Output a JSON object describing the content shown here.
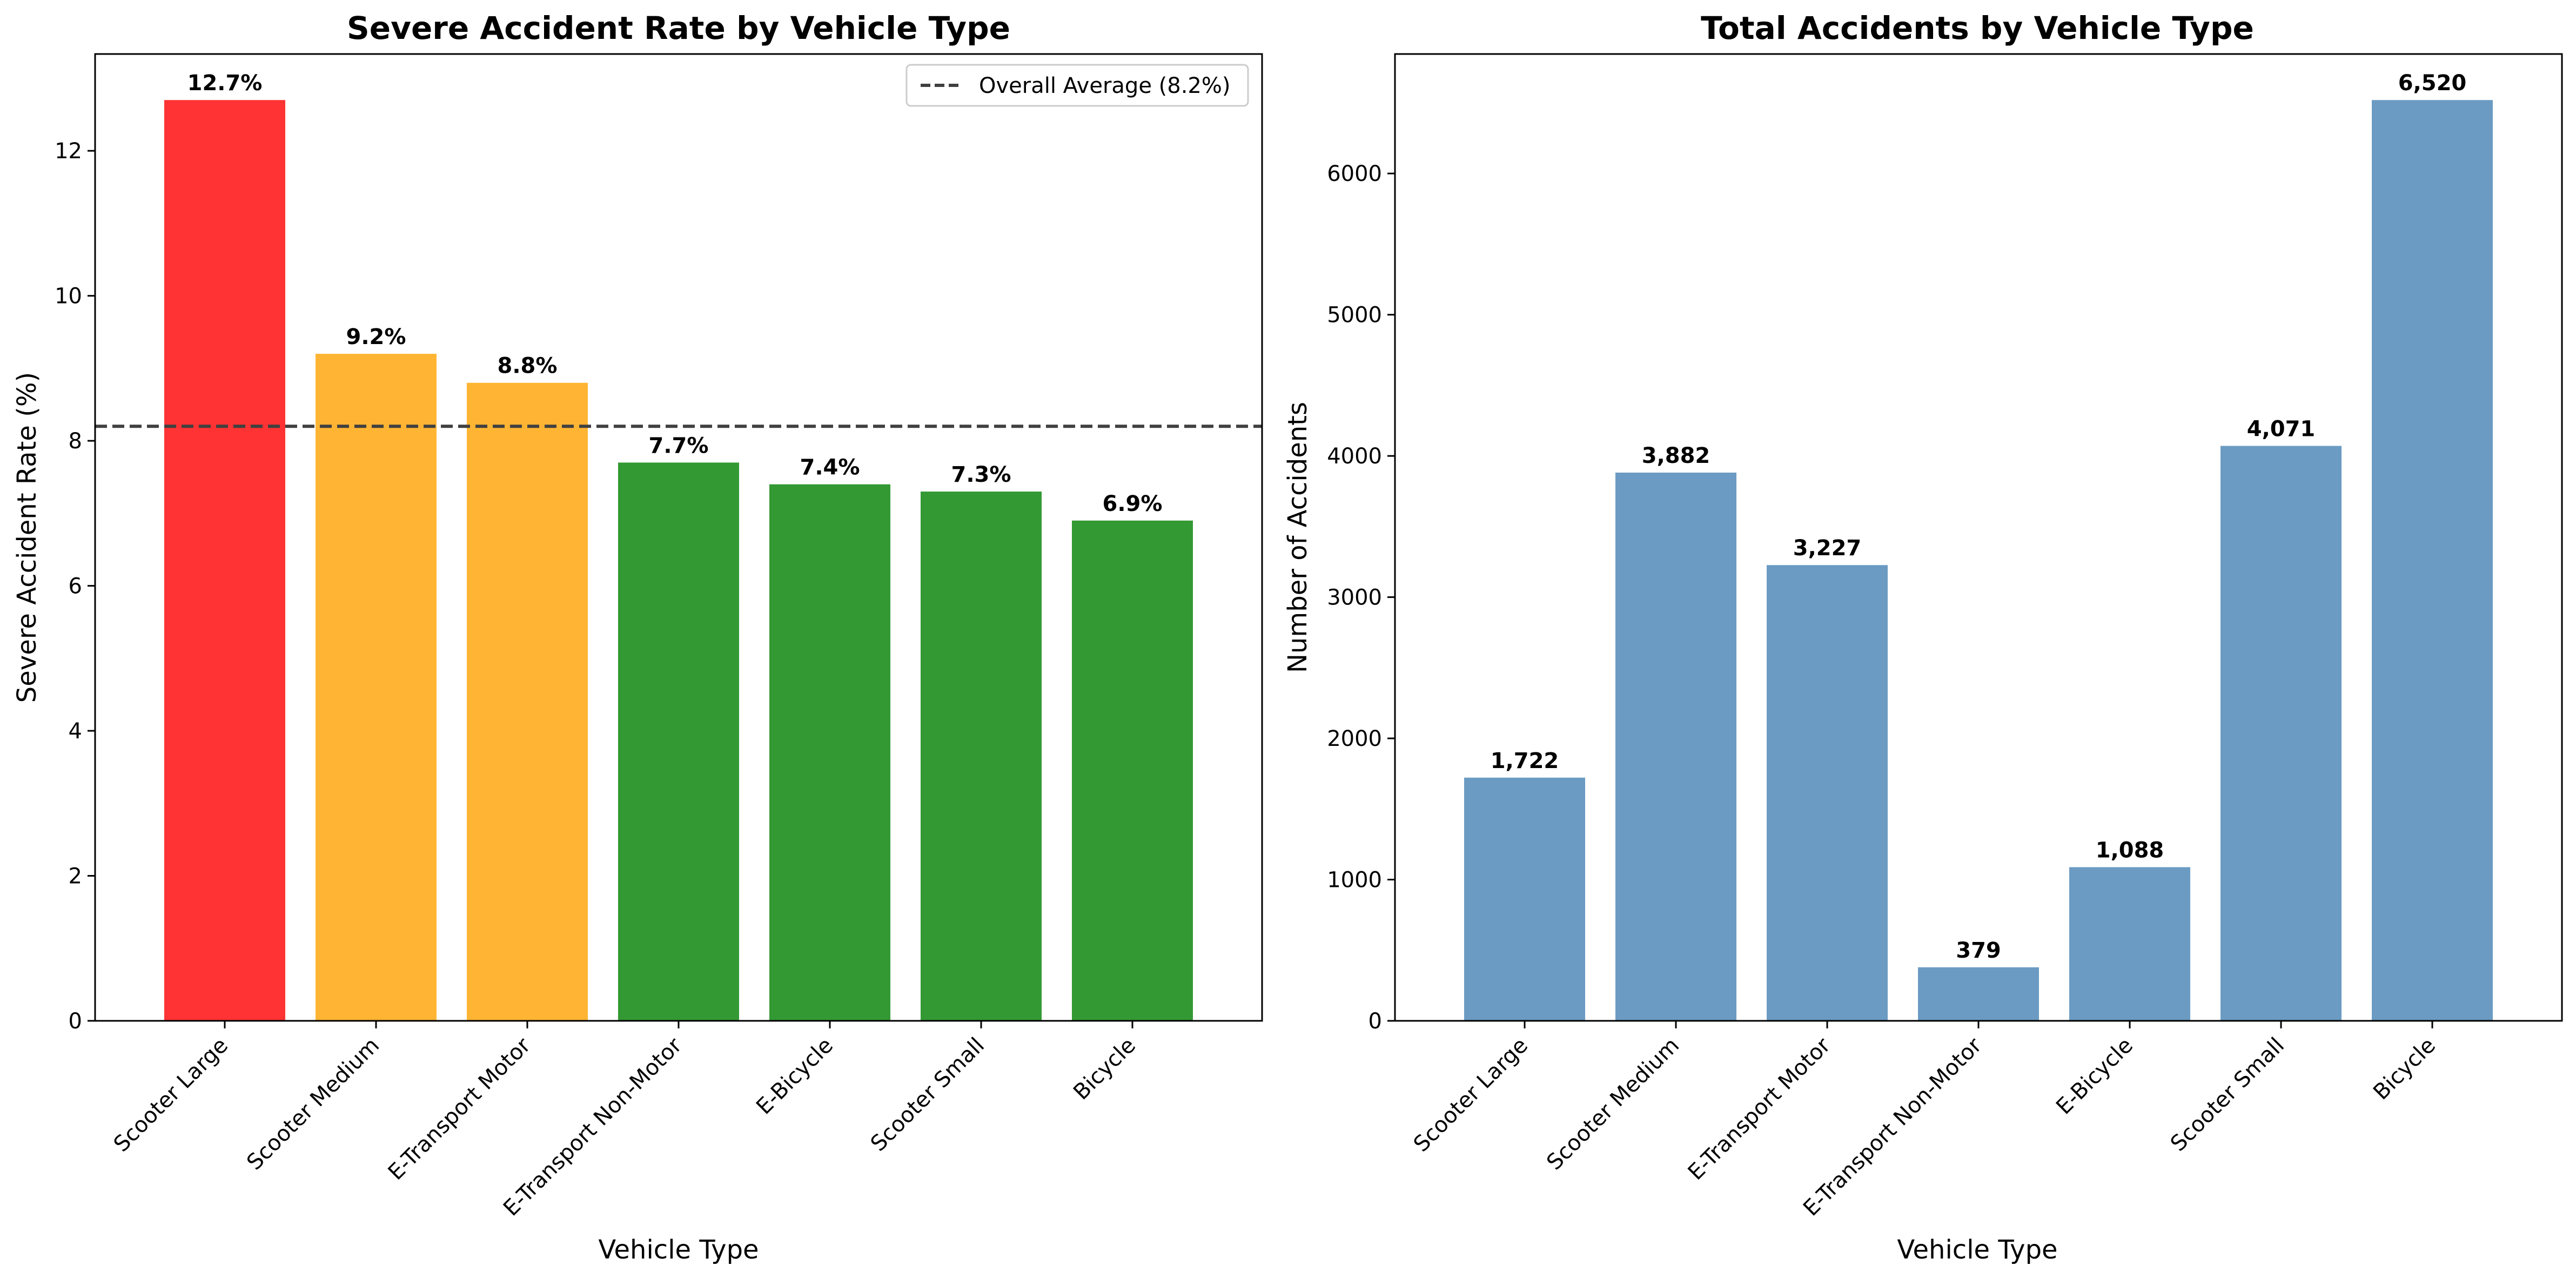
{
  "chart_data": [
    {
      "type": "bar",
      "title": "Severe Accident Rate by Vehicle Type",
      "xlabel": "Vehicle Type",
      "ylabel": "Severe Accident Rate (%)",
      "categories": [
        "Scooter Large",
        "Scooter Medium",
        "E-Transport Motor",
        "E-Transport Non-Motor",
        "E-Bicycle",
        "Scooter Small",
        "Bicycle"
      ],
      "values": [
        12.7,
        9.2,
        8.8,
        7.7,
        7.4,
        7.3,
        6.9
      ],
      "value_labels": [
        "12.7%",
        "9.2%",
        "8.8%",
        "7.7%",
        "7.4%",
        "7.3%",
        "6.9%"
      ],
      "bar_colors": [
        "#ff3333",
        "#ffb533",
        "#ffb533",
        "#339933",
        "#339933",
        "#339933",
        "#339933"
      ],
      "yticks": [
        0,
        2,
        4,
        6,
        8,
        10,
        12
      ],
      "ylim": [
        0,
        13.335
      ],
      "grid": false,
      "reference_line": {
        "value": 8.2,
        "label": "Overall Average (8.2%)",
        "color": "#404040",
        "style": "dashed"
      },
      "legend": {
        "position": "top-right",
        "entries": [
          "Overall Average (8.2%)"
        ]
      }
    },
    {
      "type": "bar",
      "title": "Total Accidents by Vehicle Type",
      "xlabel": "Vehicle Type",
      "ylabel": "Number of Accidents",
      "categories": [
        "Scooter Large",
        "Scooter Medium",
        "E-Transport Motor",
        "E-Transport Non-Motor",
        "E-Bicycle",
        "Scooter Small",
        "Bicycle"
      ],
      "values": [
        1722,
        3882,
        3227,
        379,
        1088,
        4071,
        6520
      ],
      "value_labels": [
        "1,722",
        "3,882",
        "3,227",
        "379",
        "1,088",
        "4,071",
        "6,520"
      ],
      "bar_colors": [
        "#6b9bc3",
        "#6b9bc3",
        "#6b9bc3",
        "#6b9bc3",
        "#6b9bc3",
        "#6b9bc3",
        "#6b9bc3"
      ],
      "yticks": [
        0,
        1000,
        2000,
        3000,
        4000,
        5000,
        6000
      ],
      "ylim": [
        0,
        6846
      ],
      "grid": false
    }
  ]
}
